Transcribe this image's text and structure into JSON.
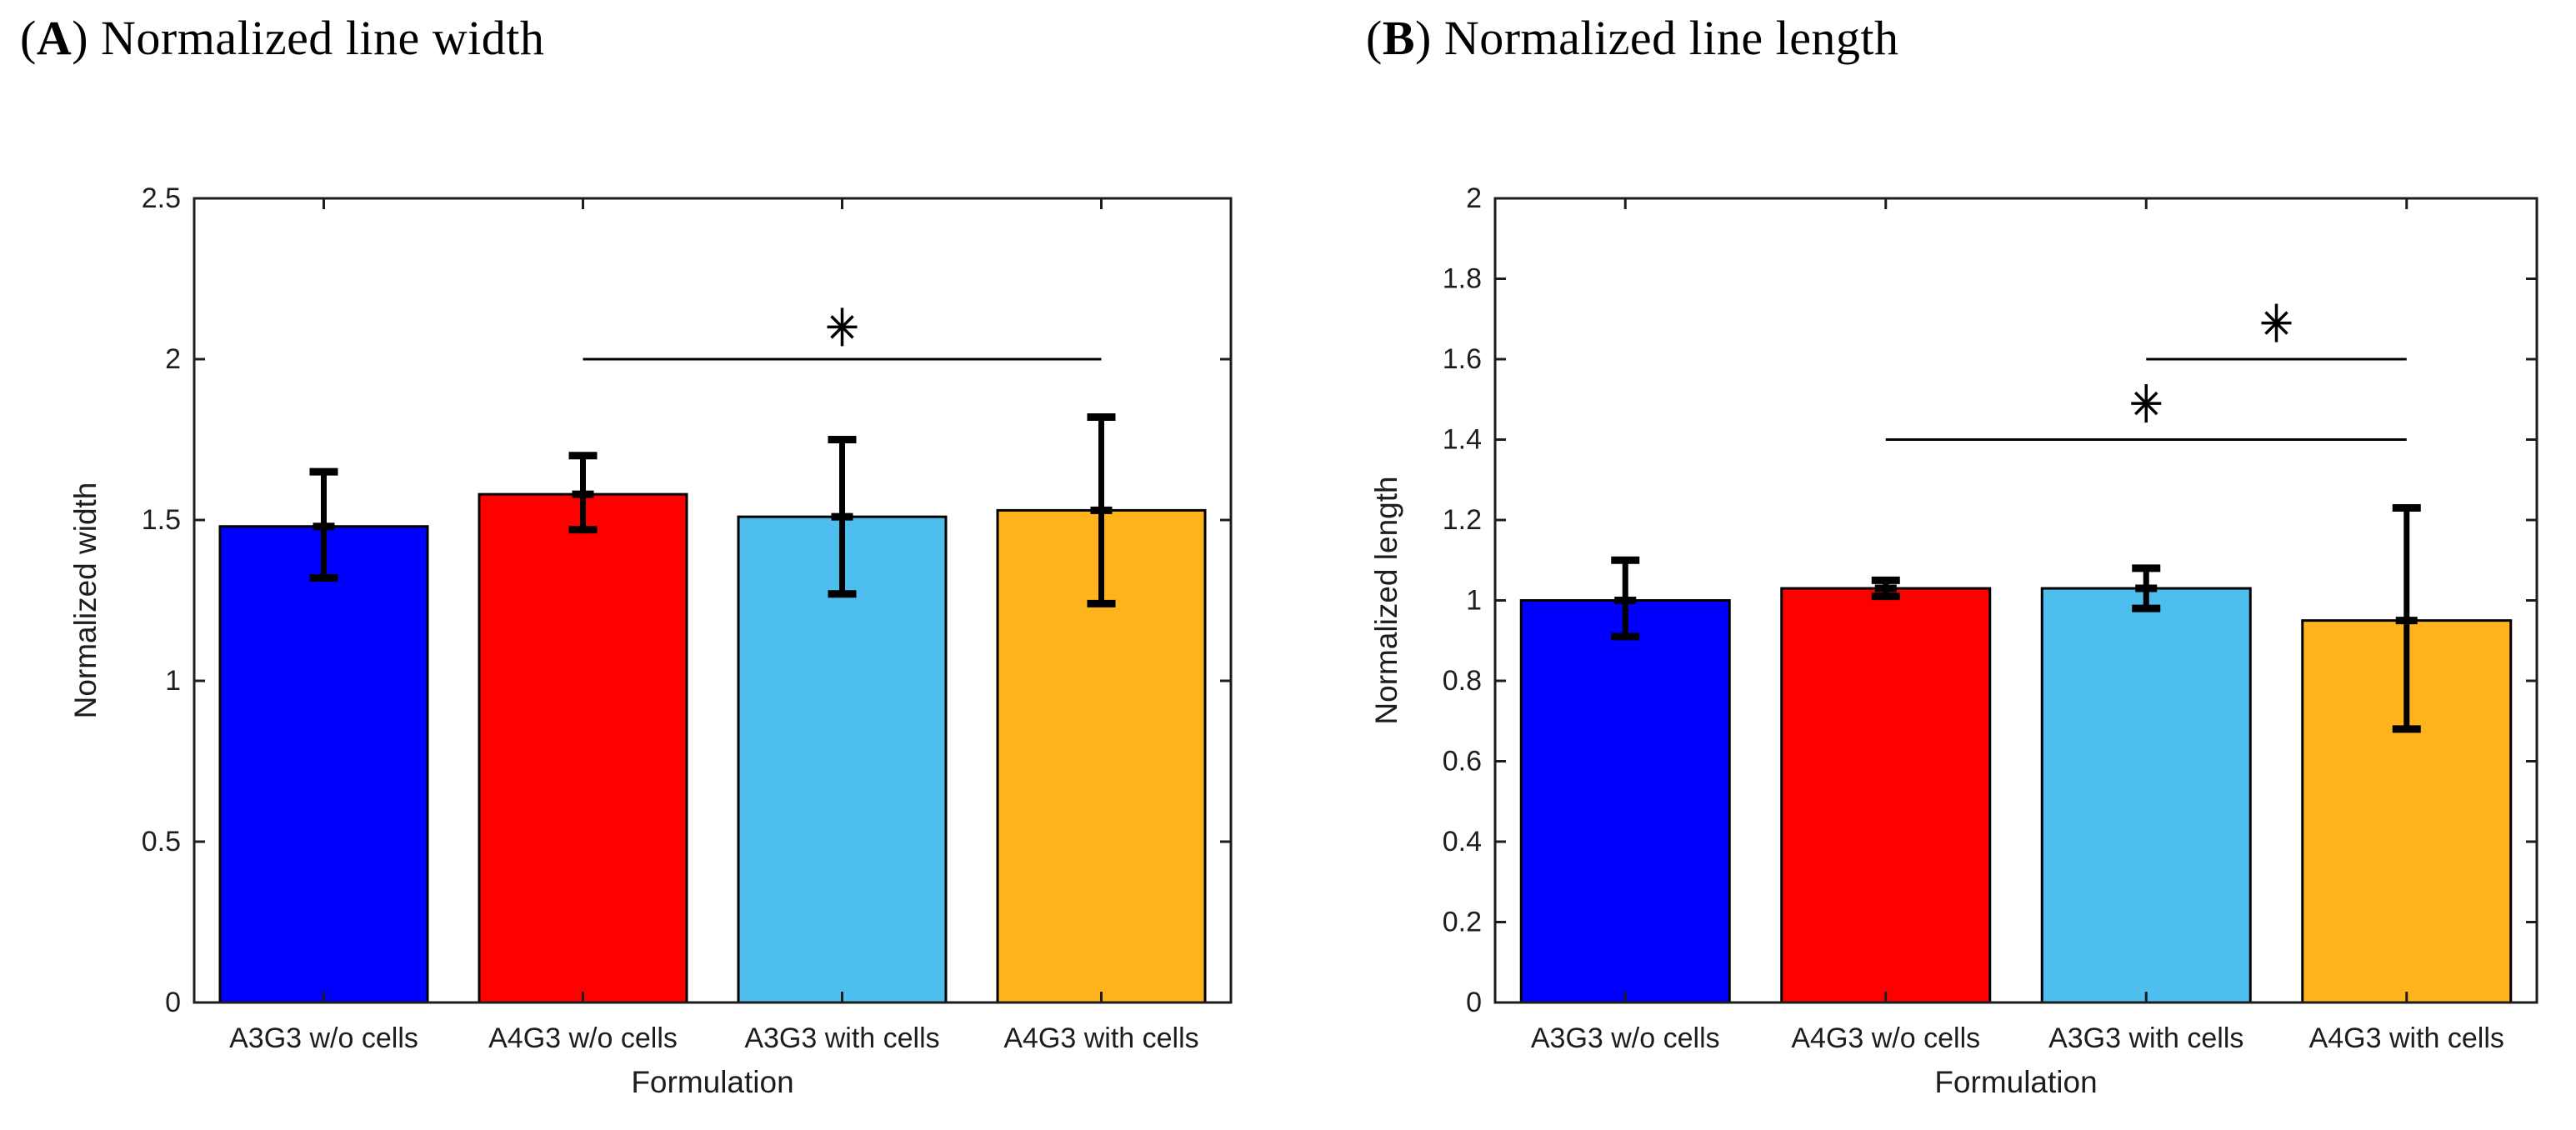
{
  "page": {
    "background": "#ffffff"
  },
  "panels": [
    {
      "title": {
        "open": "(",
        "letter": "A",
        "rest": ") Normalized line width"
      }
    },
    {
      "title": {
        "open": "(",
        "letter": "B",
        "rest": ") Normalized line length"
      }
    }
  ],
  "chart_data": [
    {
      "type": "bar",
      "title": "(A) Normalized line width",
      "xlabel": "Formulation",
      "ylabel": "Normalized width",
      "ylim": [
        0,
        2.5
      ],
      "ytick_step": 0.5,
      "grid": false,
      "legend": null,
      "categories": [
        "A3G3 w/o cells",
        "A4G3 w/o cells",
        "A3G3 with cells",
        "A4G3 with cells"
      ],
      "values": [
        1.48,
        1.58,
        1.51,
        1.53
      ],
      "error_low": [
        1.32,
        1.47,
        1.27,
        1.24
      ],
      "error_high": [
        1.65,
        1.7,
        1.75,
        1.82
      ],
      "bar_colors": [
        "#0000ff",
        "#ff0000",
        "#4dbeee",
        "#ffb41e"
      ],
      "bar_edge_color": "#000000",
      "significance": [
        {
          "from": 1,
          "to": 3,
          "line_y": 2.0,
          "star_y": 2.1,
          "label": "*"
        }
      ]
    },
    {
      "type": "bar",
      "title": "(B) Normalized line length",
      "xlabel": "Formulation",
      "ylabel": "Normalized length",
      "ylim": [
        0,
        2
      ],
      "ytick_step": 0.2,
      "grid": false,
      "legend": null,
      "categories": [
        "A3G3 w/o cells",
        "A4G3 w/o cells",
        "A3G3 with cells",
        "A4G3 with cells"
      ],
      "values": [
        1.0,
        1.03,
        1.03,
        0.95
      ],
      "error_low": [
        0.91,
        1.01,
        0.98,
        0.68
      ],
      "error_high": [
        1.1,
        1.05,
        1.08,
        1.23
      ],
      "bar_colors": [
        "#0000ff",
        "#ff0000",
        "#4dbeee",
        "#ffb41e"
      ],
      "bar_edge_color": "#000000",
      "significance": [
        {
          "from": 1,
          "to": 3,
          "line_y": 1.4,
          "star_y": 1.49,
          "label": "*"
        },
        {
          "from": 2,
          "to": 3,
          "line_y": 1.6,
          "star_y": 1.69,
          "label": "*"
        }
      ]
    }
  ]
}
